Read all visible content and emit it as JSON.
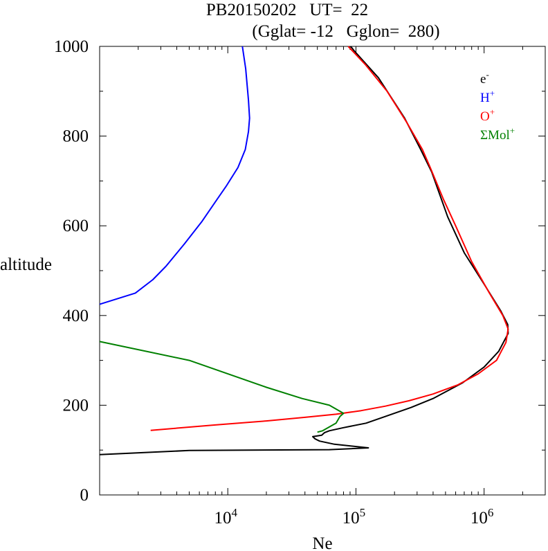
{
  "chart_data": {
    "type": "line",
    "title_line1": "PB20150202   UT=  22",
    "title_line2": "(Gglat= -12   Gglon=  280)",
    "xlabel": "Ne",
    "ylabel": "altitude",
    "x_scale": "log",
    "xlim": [
      1000,
      3000000
    ],
    "ylim": [
      0,
      1000
    ],
    "y_ticks": [
      0,
      200,
      400,
      600,
      800,
      1000
    ],
    "y_tick_labels": [
      "0",
      "200",
      "400",
      "600",
      "800",
      "1000"
    ],
    "x_major_ticks": [
      10000,
      100000,
      1000000
    ],
    "x_tick_labels": [
      {
        "base": "10",
        "exp": "4"
      },
      {
        "base": "10",
        "exp": "5"
      },
      {
        "base": "10",
        "exp": "6"
      }
    ],
    "grid": false,
    "legend_position": "top-right",
    "legend": [
      {
        "base": "e",
        "sup": "-",
        "color": "#000000"
      },
      {
        "base": "H",
        "sup": "+",
        "color": "#0000ff"
      },
      {
        "base": "O",
        "sup": "+",
        "color": "#ff0000"
      },
      {
        "base": "ΣMol",
        "sup": "+",
        "color": "#008000"
      }
    ],
    "series": [
      {
        "color": "#000000",
        "points": [
          [
            91000,
            1000
          ],
          [
            97000,
            990
          ],
          [
            150000,
            930
          ],
          [
            240000,
            840
          ],
          [
            320000,
            770
          ],
          [
            390000,
            720
          ],
          [
            520000,
            620
          ],
          [
            700000,
            540
          ],
          [
            1000000,
            470
          ],
          [
            1350000,
            410
          ],
          [
            1530000,
            380
          ],
          [
            1540000,
            360
          ],
          [
            1300000,
            320
          ],
          [
            1000000,
            285
          ],
          [
            680000,
            250
          ],
          [
            400000,
            215
          ],
          [
            270000,
            195
          ],
          [
            170000,
            175
          ],
          [
            120000,
            160
          ],
          [
            80000,
            150
          ],
          [
            62000,
            143
          ],
          [
            57000,
            139
          ],
          [
            54000,
            133
          ],
          [
            46000,
            130
          ],
          [
            48000,
            125
          ],
          [
            52000,
            120
          ],
          [
            68000,
            113
          ],
          [
            125000,
            105
          ],
          [
            62000,
            101
          ],
          [
            5000,
            99
          ],
          [
            1000,
            90
          ]
        ]
      },
      {
        "color": "#0000ff",
        "points": [
          [
            13000,
            1000
          ],
          [
            13800,
            950
          ],
          [
            14500,
            880
          ],
          [
            14800,
            840
          ],
          [
            14500,
            810
          ],
          [
            13700,
            770
          ],
          [
            12000,
            730
          ],
          [
            9800,
            690
          ],
          [
            8300,
            660
          ],
          [
            6300,
            610
          ],
          [
            4600,
            560
          ],
          [
            3300,
            510
          ],
          [
            2600,
            480
          ],
          [
            1900,
            450
          ],
          [
            1000,
            425
          ]
        ]
      },
      {
        "color": "#ff0000",
        "points": [
          [
            87000,
            1000
          ],
          [
            118000,
            960
          ],
          [
            175000,
            900
          ],
          [
            250000,
            830
          ],
          [
            330000,
            770
          ],
          [
            380000,
            730
          ],
          [
            480000,
            660
          ],
          [
            600000,
            600
          ],
          [
            800000,
            520
          ],
          [
            1100000,
            450
          ],
          [
            1400000,
            400
          ],
          [
            1540000,
            370
          ],
          [
            1480000,
            340
          ],
          [
            1250000,
            300
          ],
          [
            900000,
            270
          ],
          [
            620000,
            245
          ],
          [
            400000,
            225
          ],
          [
            260000,
            210
          ],
          [
            170000,
            198
          ],
          [
            110000,
            188
          ],
          [
            70000,
            180
          ],
          [
            40000,
            173
          ],
          [
            20000,
            165
          ],
          [
            8000,
            156
          ],
          [
            2500,
            144
          ]
        ]
      },
      {
        "color": "#008000",
        "points": [
          [
            1000,
            342
          ],
          [
            5000,
            300
          ],
          [
            20000,
            240
          ],
          [
            38000,
            215
          ],
          [
            62000,
            200
          ],
          [
            80000,
            182
          ],
          [
            75000,
            175
          ],
          [
            70000,
            160
          ],
          [
            55000,
            143
          ],
          [
            50000,
            140
          ]
        ]
      }
    ]
  }
}
